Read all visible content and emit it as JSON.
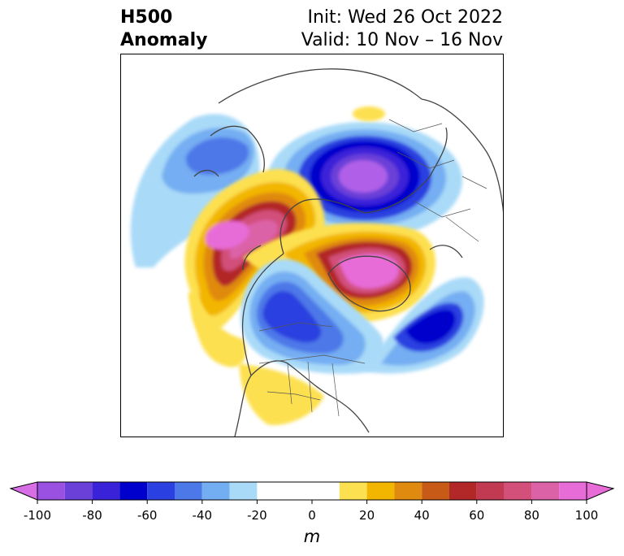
{
  "header": {
    "title_line1": "H500",
    "title_line2": "Anomaly",
    "init_label": "Init: Wed 26 Oct 2022",
    "valid_label": "Valid: 10 Nov – 16 Nov"
  },
  "map": {
    "projection": "north-polar-stereographic",
    "field": "500 hPa geopotential height anomaly",
    "features": [
      {
        "name": "ridge-alaska-siberia",
        "sign": "positive",
        "peak": 95
      },
      {
        "name": "ridge-greenland-atlantic",
        "sign": "positive",
        "peak": 95
      },
      {
        "name": "trough-russia",
        "sign": "negative",
        "peak": -100
      },
      {
        "name": "trough-north-pacific",
        "sign": "negative",
        "peak": -45
      },
      {
        "name": "trough-central-canada",
        "sign": "negative",
        "peak": -55
      },
      {
        "name": "trough-north-atlantic",
        "sign": "negative",
        "peak": -60
      },
      {
        "name": "ridge-southern-usa",
        "sign": "positive",
        "peak": 15
      }
    ]
  },
  "colorbar": {
    "units": "m",
    "ticks": [
      "-100",
      "-80",
      "-60",
      "-40",
      "-20",
      "0",
      "20",
      "40",
      "60",
      "80",
      "100"
    ],
    "levels": [
      -100,
      -90,
      -80,
      -70,
      -60,
      -50,
      -40,
      -30,
      -20,
      -10,
      10,
      20,
      30,
      40,
      50,
      60,
      70,
      80,
      90,
      100
    ],
    "colors": [
      "#9a50e0",
      "#6a40d8",
      "#3a22d8",
      "#0000cc",
      "#2a40e0",
      "#4d78e8",
      "#74aef2",
      "#a9daf8",
      "#ffffff",
      "#ffffff",
      "#fde050",
      "#f2b600",
      "#e08a10",
      "#c85a18",
      "#b22828",
      "#c23a52",
      "#d2507a",
      "#dc62a8",
      "#e86cd8"
    ],
    "extend_low_color": "#d86ee6",
    "extend_high_color": "#e86cd8"
  }
}
